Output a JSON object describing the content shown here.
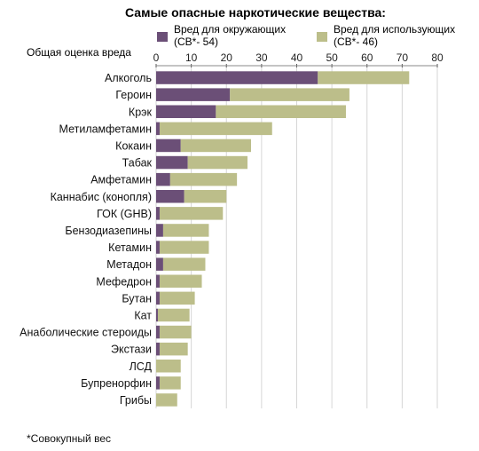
{
  "chart_data": {
    "type": "bar",
    "orientation": "horizontal",
    "stacked": true,
    "title": "Самые опасные наркотические вещества:",
    "xlabel": "Общая оценка вреда",
    "xlim": [
      0,
      80
    ],
    "xticks": [
      0,
      10,
      20,
      30,
      40,
      50,
      60,
      70,
      80
    ],
    "grid": true,
    "legend_position": "top",
    "categories": [
      "Алкоголь",
      "Героин",
      "Крэк",
      "Метиламфетамин",
      "Кокаин",
      "Табак",
      "Амфетамин",
      "Каннабис (конопля)",
      "ГОК (GHB)",
      "Бензодиазепины",
      "Кетамин",
      "Метадон",
      "Мефедрон",
      "Бутан",
      "Кат",
      "Анаболические стероиды",
      "Экстази",
      "ЛСД",
      "Бупренорфин",
      "Грибы"
    ],
    "series": [
      {
        "name": "Вред для окружающих\n(СВ*- 54)",
        "color": "#6b4f77",
        "values": [
          46,
          21,
          17,
          1,
          7,
          9,
          4,
          8,
          1,
          2,
          1,
          2,
          1,
          1,
          0.5,
          1,
          1,
          0,
          1,
          0
        ]
      },
      {
        "name": "Вред для использующих\n(СВ*- 46)",
        "color": "#bcbe8a",
        "values": [
          26,
          34,
          37,
          32,
          20,
          17,
          19,
          12,
          18,
          13,
          14,
          12,
          12,
          10,
          9,
          9,
          8,
          7,
          6,
          6
        ]
      }
    ]
  },
  "footnote": "*Совокупный вес"
}
